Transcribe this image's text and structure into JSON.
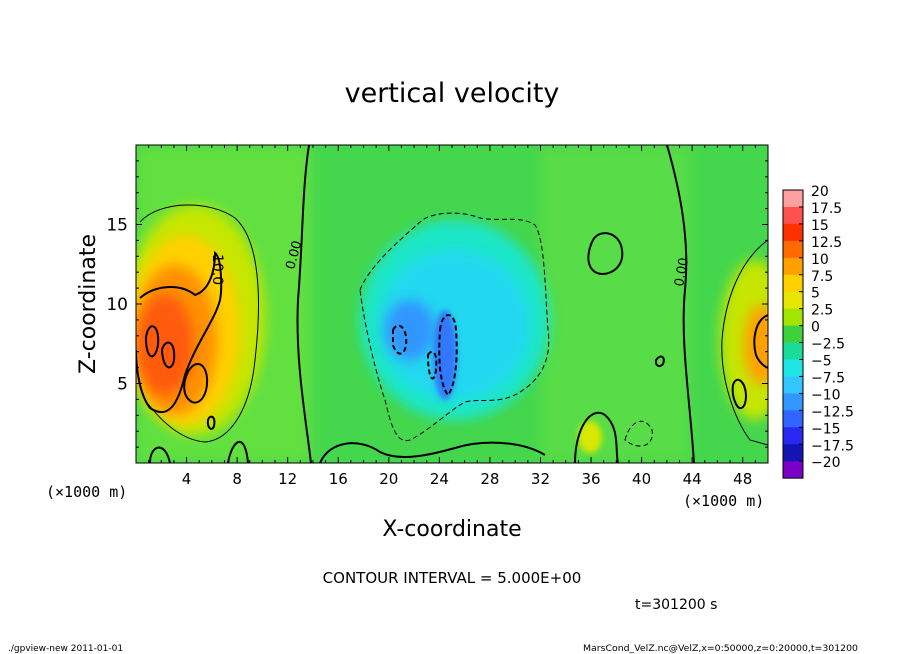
{
  "chart_data": {
    "type": "heatmap",
    "title": "vertical velocity",
    "xlabel": "X-coordinate",
    "ylabel": "Z-coordinate",
    "x_unit": "(×1000 m)",
    "y_unit": "(×1000 m)",
    "x_ticks": [
      4,
      8,
      12,
      16,
      20,
      24,
      28,
      32,
      36,
      40,
      44,
      48
    ],
    "y_ticks": [
      5,
      10,
      15
    ],
    "xlim": [
      0,
      50
    ],
    "ylim": [
      0,
      20
    ],
    "colorbar": {
      "labels": [
        "20",
        "17.5",
        "15",
        "12.5",
        "10",
        "7.5",
        "5",
        "2.5",
        "0",
        "−2.5",
        "−5",
        "−7.5",
        "−10",
        "−12.5",
        "−15",
        "−17.5",
        "−20"
      ],
      "colors": [
        "#ffa0a0",
        "#ff5050",
        "#ff3000",
        "#ff6a00",
        "#ffa000",
        "#ffd000",
        "#e6e600",
        "#a0e600",
        "#3cd23c",
        "#19dc9a",
        "#1ee6e6",
        "#32c8ff",
        "#3296ff",
        "#3264ff",
        "#2828f0",
        "#1414b4",
        "#7a00c8"
      ]
    },
    "contour_labels": [
      "10.0",
      "0.00",
      "0.00"
    ],
    "contour_interval_text": "CONTOUR INTERVAL = 5.000E+00",
    "time_text": "t=301200 s",
    "footer_left": "./gpview-new   2011-01-01",
    "footer_right": "MarsCond_VelZ.nc@VelZ,x=0:50000,z=0:20000,t=301200"
  }
}
